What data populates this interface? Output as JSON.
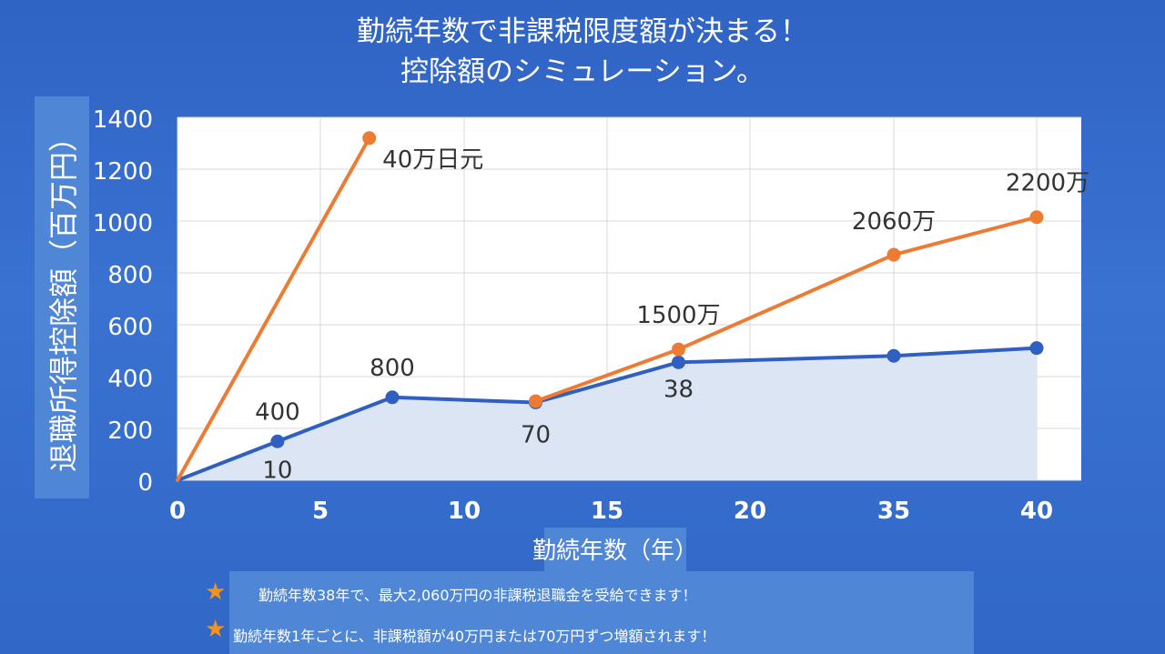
{
  "title_lines": [
    "勤続年数で非課税限度額が決まる！",
    "控除額のシミュレーション。"
  ],
  "notes": [
    "勤続年数38年で、最大2,060万円の非課税退職金を受給できます！",
    "勤続年数1年ごとに、非課税額が40万円または70万円ずつ増額されます！"
  ],
  "colors": {
    "orange": "#ee7b34",
    "blue": "#2f5fc0",
    "area": "#dbe5f4",
    "star": "#f5921e"
  },
  "chart_data": {
    "type": "line",
    "xlabel": "勤続年数（年）",
    "ylabel": "退職所得控除額（百万円）",
    "x_ticks": [
      "0",
      "5",
      "10",
      "15",
      "20",
      "35",
      "40"
    ],
    "y_ticks": [
      "0",
      "200",
      "400",
      "600",
      "800",
      "1000",
      "1200",
      "1400"
    ],
    "ylim": [
      0,
      1400
    ],
    "grid": true,
    "series": [
      {
        "color": "orange",
        "points": [
          {
            "x": 0,
            "y": 0,
            "label": ""
          },
          {
            "x": 6.7,
            "y": 1320,
            "label": "40万日元"
          }
        ]
      },
      {
        "color": "orange",
        "points": [
          {
            "x": 12.5,
            "y": 305,
            "label": ""
          },
          {
            "x": 17.5,
            "y": 505,
            "label": "1500万"
          },
          {
            "x": 35,
            "y": 870,
            "label": "2060万"
          },
          {
            "x": 40,
            "y": 1015,
            "label": "2200万"
          }
        ]
      },
      {
        "color": "blue",
        "area": true,
        "points": [
          {
            "x": 0,
            "y": 0,
            "label": ""
          },
          {
            "x": 3.5,
            "y": 150,
            "label": "10"
          },
          {
            "x": 7.5,
            "y": 320,
            "label": ""
          },
          {
            "x": 12.5,
            "y": 300,
            "label": "70"
          },
          {
            "x": 17.5,
            "y": 455,
            "label": "38"
          },
          {
            "x": 35,
            "y": 480,
            "label": ""
          },
          {
            "x": 40,
            "y": 510,
            "label": ""
          }
        ]
      }
    ],
    "annotations": [
      {
        "text": "400",
        "x": 3.5,
        "y": 150
      },
      {
        "text": "800",
        "x": 7.5,
        "y": 320
      }
    ]
  }
}
